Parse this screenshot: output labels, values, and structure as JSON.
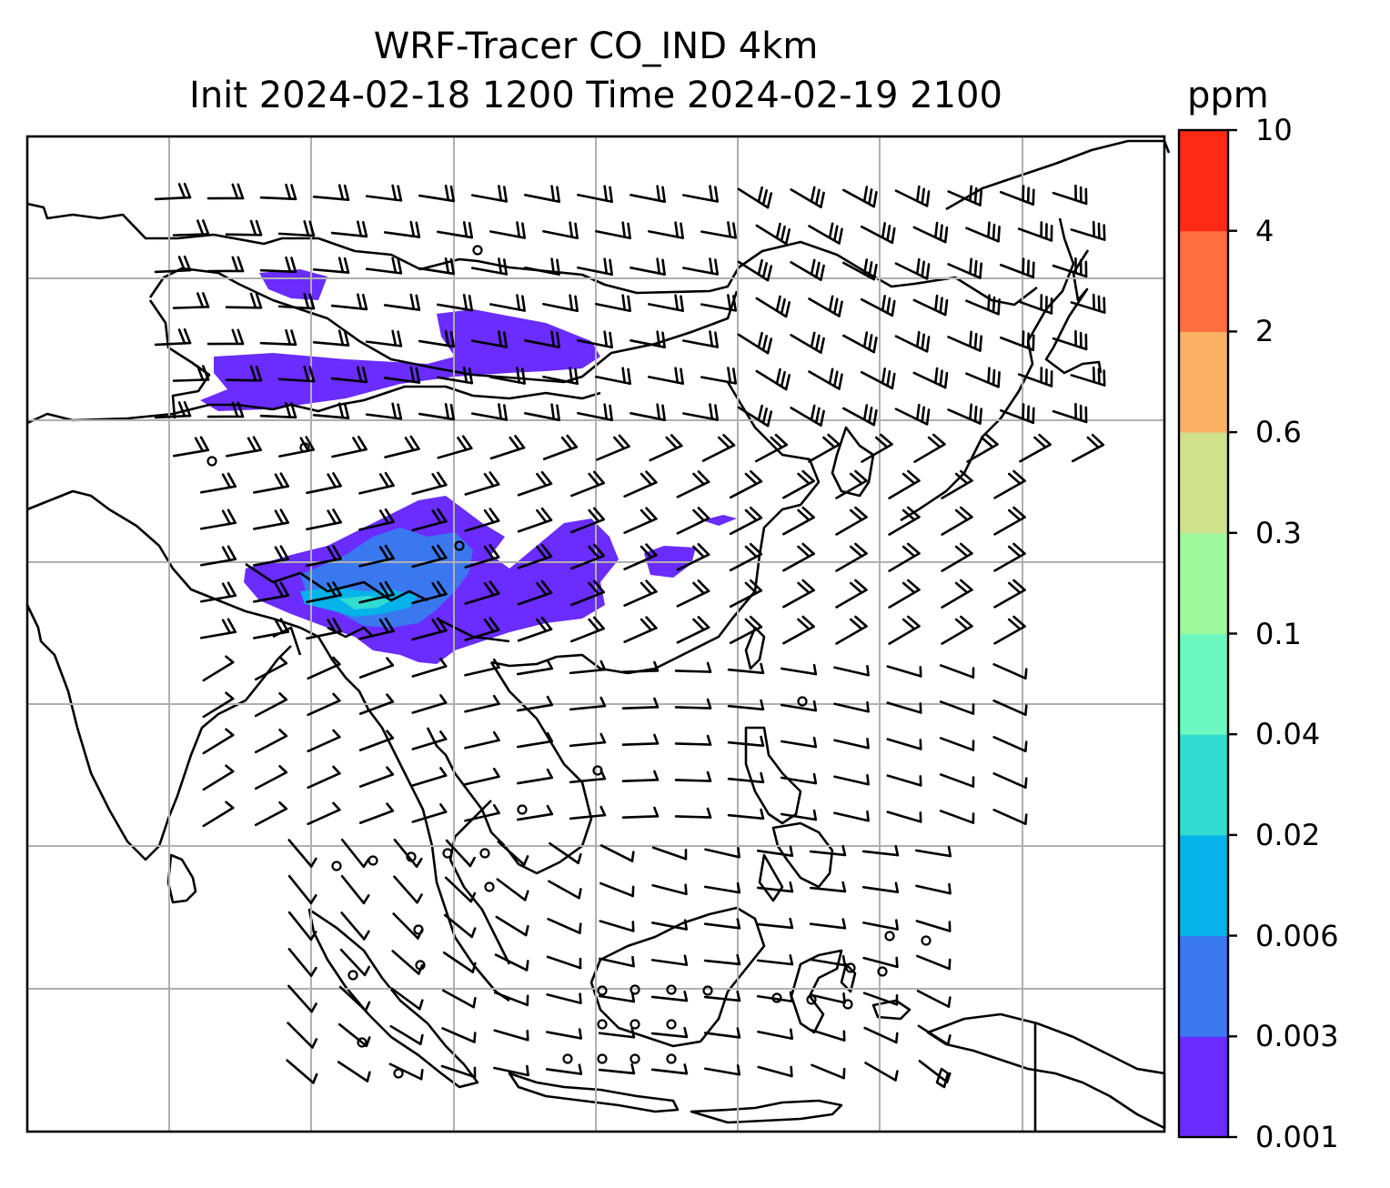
{
  "title": {
    "line1": "WRF-Tracer CO_IND 4km",
    "line2": "Init 2024-02-18 1200 Time 2024-02-19 2100"
  },
  "colorbar": {
    "unit": "ppm",
    "levels": [
      "0.001",
      "0.003",
      "0.006",
      "0.02",
      "0.04",
      "0.1",
      "0.3",
      "0.6",
      "2",
      "4",
      "10"
    ],
    "colors": [
      "#6a2cff",
      "#3a78f0",
      "#05b2ea",
      "#32dcd0",
      "#6cf8c0",
      "#9ef89c",
      "#cfe18a",
      "#fcb064",
      "#ff6e3e",
      "#ff2a16"
    ]
  },
  "map": {
    "background": "#ffffff",
    "gridline_color": "#b0b0b0",
    "coastline_color": "#000000",
    "overlay": "wind barbs"
  }
}
